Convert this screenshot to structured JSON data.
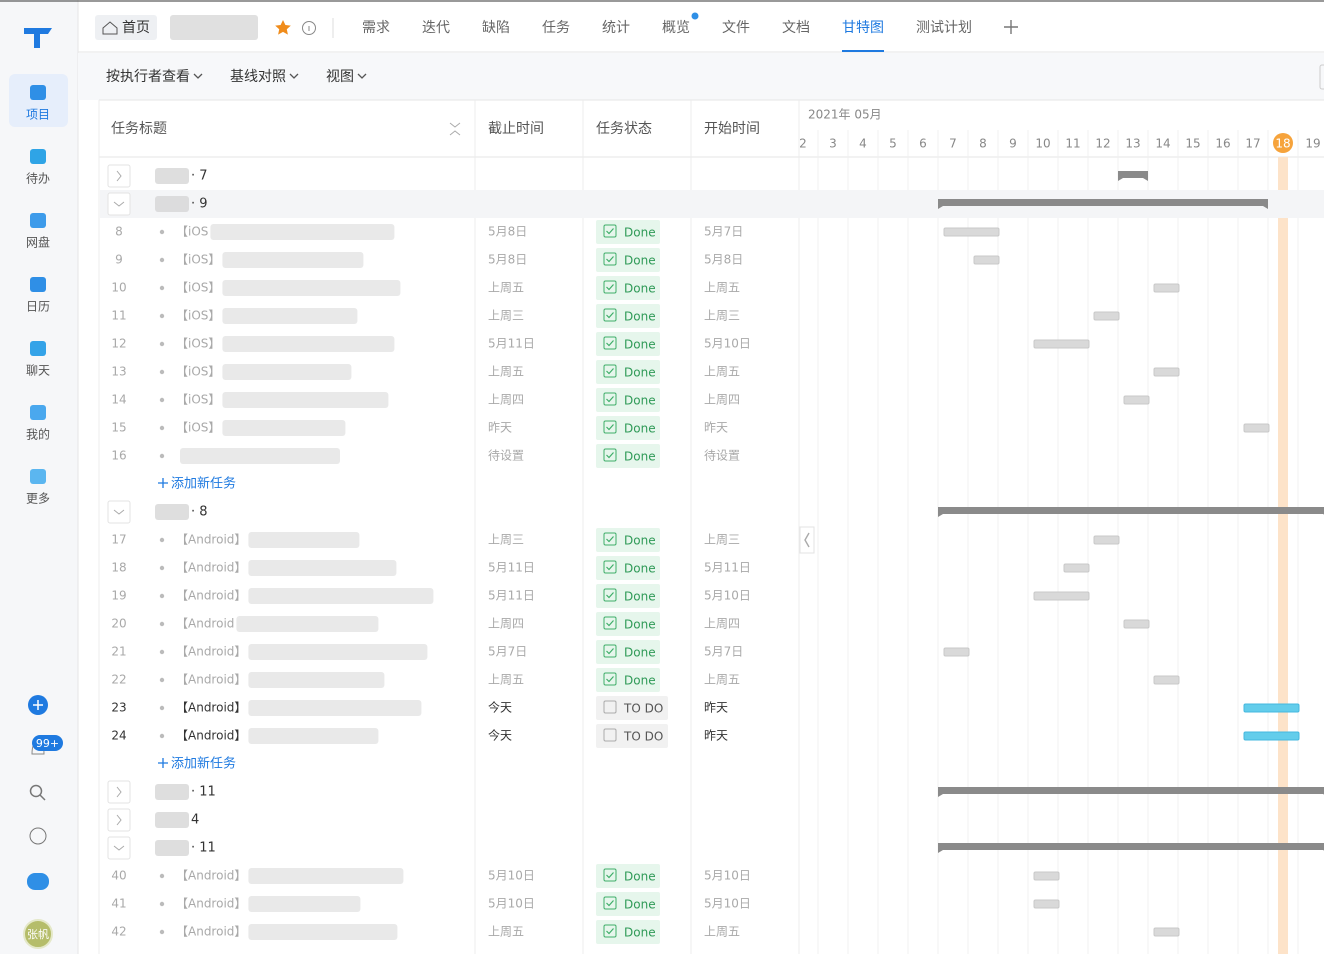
{
  "sidebar": {
    "items": [
      "项目",
      "待办",
      "网盘",
      "日历",
      "聊天",
      "我的",
      "更多"
    ],
    "active_item": 0,
    "badge": "99+",
    "avatar": "张帆"
  },
  "topnav": {
    "home": "首页",
    "tabs": [
      "需求",
      "迭代",
      "缺陷",
      "任务",
      "统计",
      "概览",
      "文件",
      "文档",
      "甘特图",
      "测试计划"
    ],
    "active_tab": 8
  },
  "toolbar": [
    "按执行者查看",
    "基线对照",
    "视图"
  ],
  "columns": [
    "任务标题",
    "截止时间",
    "任务状态",
    "开始时间"
  ],
  "gantt": {
    "month": "2021年 05月",
    "days": [
      2,
      3,
      4,
      5,
      6,
      7,
      8,
      9,
      10,
      11,
      12,
      13,
      14,
      15,
      16,
      17,
      18,
      19
    ],
    "today": 18
  },
  "rows": [
    {
      "kind": "group",
      "count": "· 7",
      "expanded": false,
      "bar": [
        13,
        13
      ]
    },
    {
      "kind": "group",
      "count": "· 9",
      "expanded": true,
      "bar": [
        7,
        17
      ]
    },
    {
      "kind": "task",
      "id": 8,
      "tag": "【iOS",
      "due": "5月8日",
      "status": "Done",
      "start": "5月7日",
      "bar": [
        7,
        8
      ]
    },
    {
      "kind": "task",
      "id": 9,
      "tag": "【iOS】",
      "due": "5月8日",
      "status": "Done",
      "start": "5月8日",
      "bar": [
        8,
        8
      ]
    },
    {
      "kind": "task",
      "id": 10,
      "tag": "【iOS】",
      "due": "上周五",
      "status": "Done",
      "start": "上周五",
      "bar": [
        14,
        14
      ]
    },
    {
      "kind": "task",
      "id": 11,
      "tag": "【iOS】",
      "due": "上周三",
      "status": "Done",
      "start": "上周三",
      "bar": [
        12,
        12
      ]
    },
    {
      "kind": "task",
      "id": 12,
      "tag": "【iOS】",
      "due": "5月11日",
      "status": "Done",
      "start": "5月10日",
      "bar": [
        10,
        11
      ]
    },
    {
      "kind": "task",
      "id": 13,
      "tag": "【iOS】",
      "due": "上周五",
      "status": "Done",
      "start": "上周五",
      "bar": [
        14,
        14
      ]
    },
    {
      "kind": "task",
      "id": 14,
      "tag": "【iOS】",
      "due": "上周四",
      "status": "Done",
      "start": "上周四",
      "bar": [
        13,
        13
      ]
    },
    {
      "kind": "task",
      "id": 15,
      "tag": "【iOS】",
      "due": "昨天",
      "status": "Done",
      "start": "昨天",
      "bar": [
        17,
        17
      ]
    },
    {
      "kind": "task",
      "id": 16,
      "due": "待设置",
      "status": "Done",
      "start": "待设置"
    },
    {
      "kind": "add",
      "label": "添加新任务"
    },
    {
      "kind": "group",
      "count": "· 8",
      "expanded": true,
      "bar": [
        7,
        19
      ]
    },
    {
      "kind": "task",
      "id": 17,
      "tag": "【Android】",
      "due": "上周三",
      "status": "Done",
      "start": "上周三",
      "bar": [
        12,
        12
      ]
    },
    {
      "kind": "task",
      "id": 18,
      "tag": "【Android】",
      "due": "5月11日",
      "status": "Done",
      "start": "5月11日",
      "bar": [
        11,
        11
      ]
    },
    {
      "kind": "task",
      "id": 19,
      "tag": "【Android】",
      "due": "5月11日",
      "status": "Done",
      "start": "5月10日",
      "bar": [
        10,
        11
      ]
    },
    {
      "kind": "task",
      "id": 20,
      "tag": "【Android",
      "due": "上周四",
      "status": "Done",
      "start": "上周四",
      "bar": [
        13,
        13
      ]
    },
    {
      "kind": "task",
      "id": 21,
      "tag": "【Android】",
      "due": "5月7日",
      "status": "Done",
      "start": "5月7日",
      "bar": [
        7,
        7
      ]
    },
    {
      "kind": "task",
      "id": 22,
      "tag": "【Android】",
      "due": "上周五",
      "status": "Done",
      "start": "上周五",
      "bar": [
        14,
        14
      ]
    },
    {
      "kind": "task",
      "id": 23,
      "tag": "【Android】",
      "due": "今天",
      "status": "TO DO",
      "start": "昨天",
      "bar": [
        17,
        18
      ]
    },
    {
      "kind": "task",
      "id": 24,
      "tag": "【Android】",
      "due": "今天",
      "status": "TO DO",
      "start": "昨天",
      "bar": [
        17,
        18
      ]
    },
    {
      "kind": "add",
      "label": "添加新任务"
    },
    {
      "kind": "group",
      "count": "· 11",
      "expanded": false,
      "bar": [
        7,
        19
      ]
    },
    {
      "kind": "group",
      "count": "4",
      "expanded": false
    },
    {
      "kind": "group",
      "count": "· 11",
      "expanded": true,
      "bar": [
        7,
        19
      ]
    },
    {
      "kind": "task",
      "id": 40,
      "tag": "【Android】",
      "due": "5月10日",
      "status": "Done",
      "start": "5月10日",
      "bar": [
        10,
        10
      ]
    },
    {
      "kind": "task",
      "id": 41,
      "tag": "【Android】",
      "due": "5月10日",
      "status": "Done",
      "start": "5月10日",
      "bar": [
        10,
        10
      ]
    },
    {
      "kind": "task",
      "id": 42,
      "tag": "【Android】",
      "due": "上周五",
      "status": "Done",
      "start": "上周五",
      "bar": [
        14,
        14
      ]
    }
  ]
}
